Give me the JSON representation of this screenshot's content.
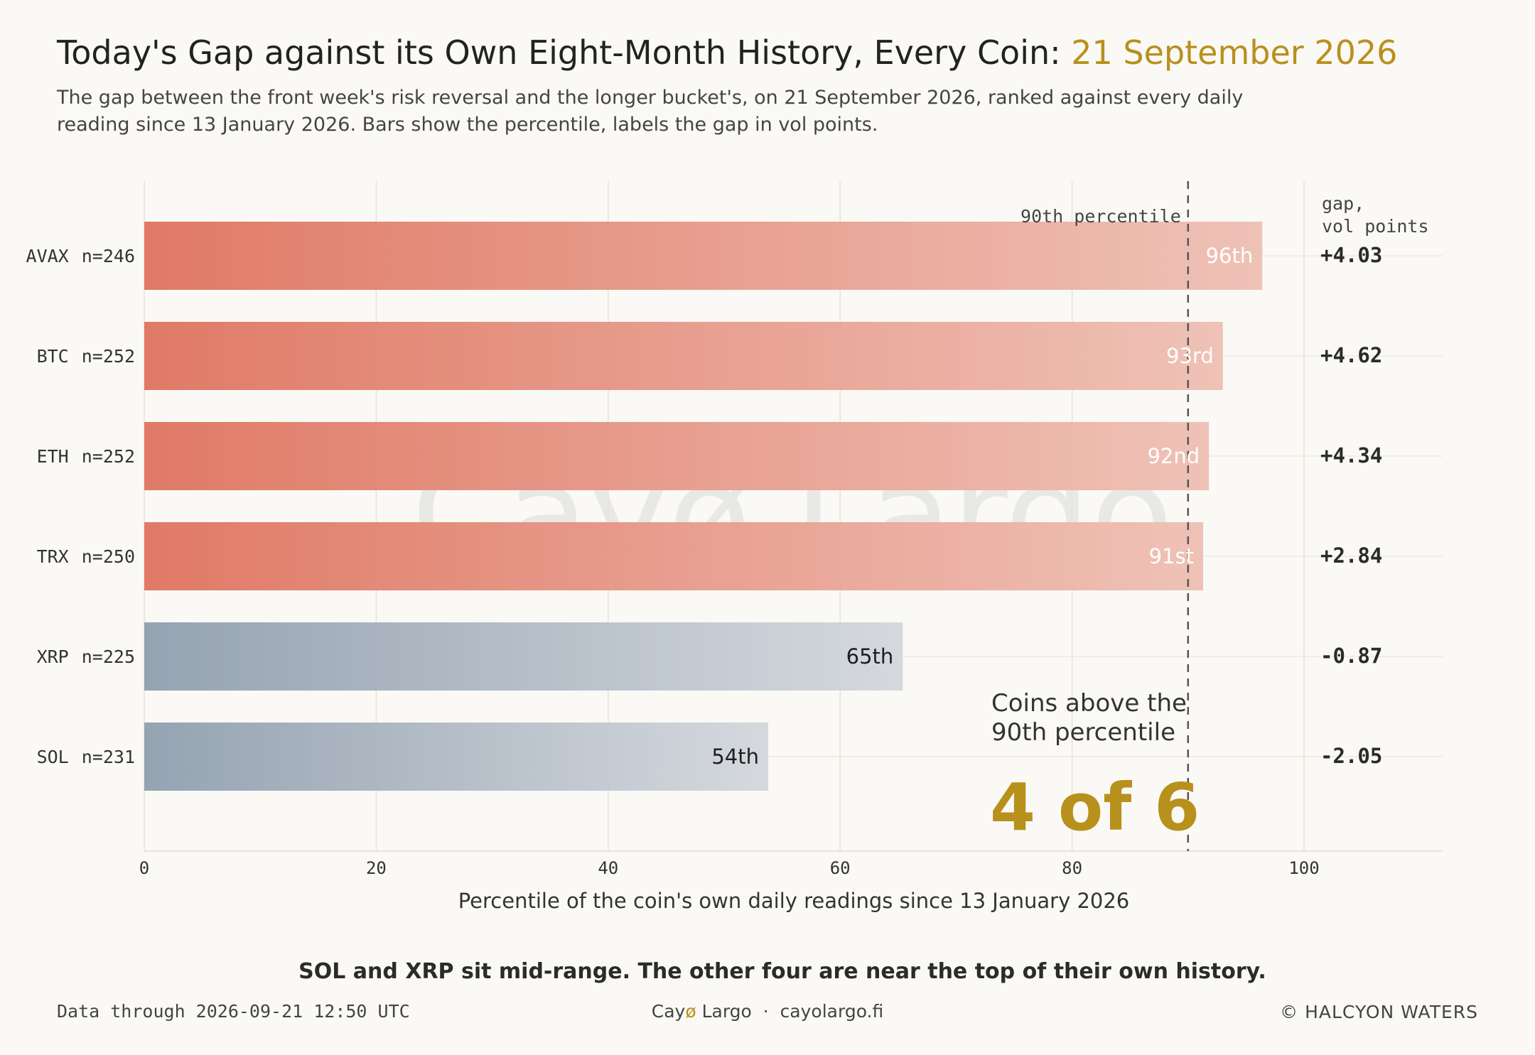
{
  "header": {
    "title": "Today's Gap against its Own Eight-Month History, Every Coin: ",
    "title_date": "21 September 2026",
    "subtitle_line1": "The gap between the front week's risk reversal and the longer bucket's, on 21 September 2026, ranked against every daily",
    "subtitle_line2": "reading since 13 January 2026. Bars show the percentile, labels the gap in vol points."
  },
  "chart_data": {
    "type": "bar",
    "orientation": "horizontal",
    "categories": [
      "AVAX",
      "BTC",
      "ETH",
      "TRX",
      "XRP",
      "SOL"
    ],
    "sample_sizes": [
      "n=246",
      "n=252",
      "n=252",
      "n=250",
      "n=225",
      "n=231"
    ],
    "values": [
      96.4,
      93.0,
      91.8,
      91.3,
      65.4,
      53.8
    ],
    "value_labels": [
      "96th",
      "93rd",
      "92nd",
      "91st",
      "65th",
      "54th"
    ],
    "gap_values": [
      "+4.03",
      "+4.62",
      "+4.34",
      "+2.84",
      "-0.87",
      "-2.05"
    ],
    "gap_header_line1": "gap,",
    "gap_header_line2": "vol points",
    "xlabel": "Percentile of the coin's own daily readings since 13 January 2026",
    "xlim": [
      0,
      112
    ],
    "xticks": [
      0,
      20,
      40,
      60,
      80,
      100
    ],
    "grid": true,
    "reference_line": {
      "value": 90,
      "label": "90th percentile"
    },
    "highlight_threshold": 90,
    "colors": {
      "above_start": "#e07a66",
      "above_end": "#efc2b7",
      "below_start": "#95a3b2",
      "below_end": "#d5d9de",
      "accent": "#b8901c"
    },
    "callout": {
      "line1": "Coins above the",
      "line2": "90th percentile",
      "value": "4 of 6"
    }
  },
  "takeaway": "SOL and XRP sit mid-range. The other four are near the top of their own history.",
  "footer": {
    "left": "Data through 2026-09-21 12:50 UTC",
    "center_brand_a": "Cay",
    "center_brand_o": "ø",
    "center_brand_b": " Largo",
    "center_sep": "  ·  ",
    "center_site": "cayolargo.fi",
    "right": "© HALCYON WATERS"
  },
  "watermark": "Cayø Largo"
}
